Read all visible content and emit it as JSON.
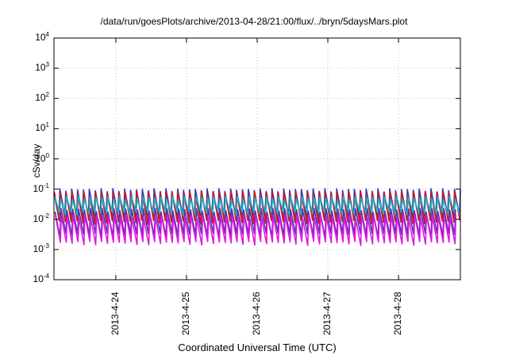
{
  "chart_data": {
    "type": "line",
    "title": "/data/run/goesPlots/archive/2013-04-28/21:00/flux/../bryn/5daysMars.plot",
    "xlabel": "Coordinated Universal Time (UTC)",
    "ylabel": "cSv/day",
    "yscale": "log",
    "ylim": [
      0.0001,
      10000
    ],
    "xlim": [
      "2013-04-23T03:00",
      "2013-04-28T21:00"
    ],
    "y_ticks": [
      {
        "base": "10",
        "exp": "-4"
      },
      {
        "base": "10",
        "exp": "-3"
      },
      {
        "base": "10",
        "exp": "-2"
      },
      {
        "base": "10",
        "exp": "-1"
      },
      {
        "base": "10",
        "exp": "0"
      },
      {
        "base": "10",
        "exp": "1"
      },
      {
        "base": "10",
        "exp": "2"
      },
      {
        "base": "10",
        "exp": "3"
      },
      {
        "base": "10",
        "exp": "4"
      }
    ],
    "x_ticks": [
      "2013-4-24",
      "2013-4-25",
      "2013-4-26",
      "2013-4-27",
      "2013-4-28"
    ],
    "grid": true,
    "legend": "none",
    "cycles_per_day": 12,
    "series": [
      {
        "color": "#1f3fd0",
        "peak": 0.09,
        "trough": 0.012
      },
      {
        "color": "#cc1b1b",
        "peak": 0.075,
        "trough": 0.008
      },
      {
        "color": "#18b8c8",
        "peak": 0.05,
        "trough": 0.015
      },
      {
        "color": "#5a2fb5",
        "peak": 0.02,
        "trough": 0.003
      },
      {
        "color": "#e018e0",
        "peak": 0.012,
        "trough": 0.0016
      }
    ]
  }
}
